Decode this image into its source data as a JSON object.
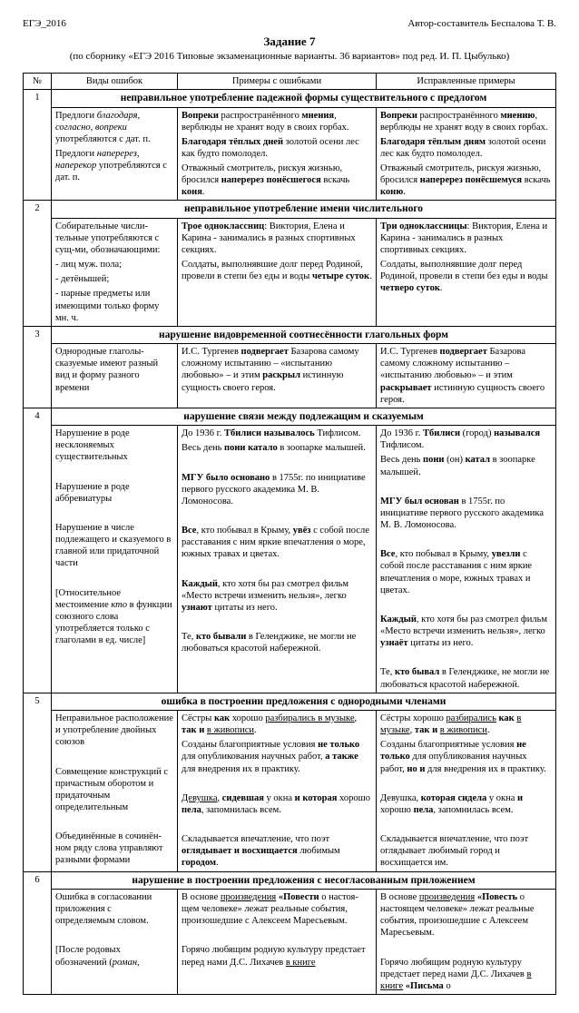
{
  "meta": {
    "left_header": "ЕГЭ_2016",
    "right_header": "Автор-составитель Беспалова Т. В.",
    "title": "Задание 7",
    "subtitle": "(по сборнику «ЕГЭ 2016 Типовые экзаменационные варианты. 36 вариантов» под ред. И. П. Цыбулько)"
  },
  "headers": {
    "num": "№",
    "col1": "Виды ошибок",
    "col2": "Примеры с ошибками",
    "col3": "Исправленные примеры"
  },
  "rows": [
    {
      "num": "1",
      "section": "неправильное употребление падежной формы существительного с предлогом",
      "col1": "<p>Предлоги <span class='i'>благодаря, согласно, вопреки</span> употребляются с дат. п.</p><p>Предлоги <span class='i'>наперерез, наперекор</span> употребляются с дат. п.</p>",
      "col2": "<p><span class='b'>Вопреки</span> распространённого <span class='b'>мнения</span>, верблюды не хранят воду в своих горбах.</p><p><span class='b'>Благодаря тёплых дней</span> золотой осени лес как будто помолодел.</p><p>Отважный смотритель, рискуя жизнью, бросился <span class='b'>наперерез понёсшегося</span> вскачь <span class='b'>коня</span>.</p>",
      "col3": "<p><span class='b'>Вопреки</span> распространённого <span class='b'>мнению</span>, верблюды не хранят воду в своих горбах.</p><p><span class='b'>Благодаря тёплым дням</span> золотой осени лес как будто помолодел.</p><p>Отважный смотритель, рискуя жизнью, бросился <span class='b'>наперерез понёсшемуся</span> вскачь <span class='b'>коню</span>.</p>"
    },
    {
      "num": "2",
      "section": "неправильное употребление имени числительного",
      "col1": "<p>Собирательные числи­тельные употребляются с сущ-ми, обозначающими:</p><p>- лиц муж. пола;</p><p>- детёнышей;</p><p>- парные предметы или имеющими только форму мн. ч.</p>",
      "col2": "<p><span class='b'>Трое одноклассниц</span>: Виктория, Елена и Карина - занимались в разных спортивных секциях.</p><p>Солдаты, выполнявшие долг перед Родиной, провели в степи без еды и воды <span class='b'>четыре суток</span>.</p>",
      "col3": "<p><span class='b'>Три одноклассницы</span>: Виктория, Елена и Карина - занимались в разных спортивных секциях.</p><p>Солдаты, выполнявшие долг перед Родиной, провели в степи без еды и воды <span class='b'>четверо суток</span>.</p>"
    },
    {
      "num": "3",
      "section": "нарушение видовременной соотнесённости глагольных форм",
      "col1": "<p>Однородные глаголы-сказуемые имеют разный вид и форму разного времени</p>",
      "col2": "<p>И.С. Тургенев <span class='b'>подвергает</span> Базарова самому сложному испытанию – «испытанию любовью» – и этим <span class='b'>раскрыл</span> истинную сущность своего героя.</p>",
      "col3": "<p>И.С. Тургенев <span class='b'>подвергает</span> Базарова самому сложному испытанию – «испытанию любовью» – и этим <span class='b'>раскрывает</span> истинную сущность своего героя.</p>"
    },
    {
      "num": "4",
      "section": "нарушение связи между подлежащим и сказуемым",
      "col1": "<p>Нарушение в роде несклоняемых существительных</p><p>&nbsp;</p><p>Нарушение в роде аббревиатуры</p><p>&nbsp;</p><p>Нарушение в числе подлежащего и сказуемого в главной или придаточной части</p><p>&nbsp;</p><p>[Относительное местоимение <span class='i'>кто</span> в функции союзного слова употребляется только с глаголами в ед. числе]</p>",
      "col2": "<p>До 1936 г. <span class='b'>Тбилиси называлось</span> Тифлисом.</p><p>Весь день <span class='b'>пони катало</span> в зоопарке малышей.</p><p>&nbsp;</p><p><span class='b'>МГУ было основано</span> в 1755г. по инициативе первого русского академика М. В. Ломоносова.</p><p>&nbsp;</p><p><span class='b'>Все</span>, кто побывал в Крыму, <span class='b'>увёз</span> с собой после расставания с ним яркие впечатления о море, южных травах и цветах.</p><p>&nbsp;</p><p><span class='b'>Каждый</span>, кто хотя бы раз смотрел фильм «Место встречи изменить нельзя», легко <span class='b'>узнают</span> цитаты из него.</p><p>&nbsp;</p><p>Те, <span class='b'>кто бывали</span> в Геленджике, не могли не любоваться красотой набережной.</p>",
      "col3": "<p>До 1936 г. <span class='b'>Тбилиси</span> (город) <span class='b'>назывался</span> Тифлисом.</p><p>Весь день <span class='b'>пони</span> (он) <span class='b'>катал</span> в зоопарке малышей.</p><p>&nbsp;</p><p><span class='b'>МГУ был основан</span> в 1755г. по инициативе первого русского академика М. В. Ломоносова.</p><p>&nbsp;</p><p><span class='b'>Все</span>, кто побывал в Крыму, <span class='b'>увезли</span> с собой после расставания с ним яркие впечатления о море, южных травах и цветах.</p><p>&nbsp;</p><p><span class='b'>Каждый</span>, кто хотя бы раз смотрел фильм «Место встречи изменить нельзя», легко <span class='b'>узнаёт</span> цитаты из него.</p><p>&nbsp;</p><p>Те, <span class='b'>кто бывал</span> в Геленджике, не могли не любоваться красотой набережной.</p>"
    },
    {
      "num": "5",
      "section": "ошибка в построении предложения с однородными членами",
      "col1": "<p>Неправильное расположение и употребление двойных союзов</p><p>&nbsp;</p><p>Совмещение конструк­ций с причастным оборотом и придаточным определительным</p><p>&nbsp;</p><p>Объединённые в сочинён­ном ряду слова управляют разными формами</p>",
      "col2": "<p>Сёстры <span class='b'>как</span> хорошо <span class='u'>разбирались в музыке</span>, <span class='b'>так и</span> <span class='u'>в живописи</span>.</p><p>Созданы благоприятные условия <span class='b'>не только</span> для опубликования научных работ, <span class='b'>а также</span> для внедрения их в практику.</p><p>&nbsp;</p><p><span class='u'>Девушка</span>, <span class='b'>сидевшая</span> у окна <span class='b'>и которая</span> хорошо <span class='b'>пела</span>, запомнилась всем.</p><p>&nbsp;</p><p>Складывается впечатление, что поэт <span class='b'>оглядывает и восхищается</span> любимым <span class='b'>городом</span>.</p>",
      "col3": "<p>Сёстры хорошо <span class='u'>разбирались</span> <span class='b'>как</span> <span class='u'>в музыке</span>, <span class='b'>так и</span> <span class='u'>в живописи</span>.</p><p>Созданы благоприятные условия <span class='b'>не только</span> для опубликования научных работ, <span class='b'>но и</span> для внедрения их в практику.</p><p>&nbsp;</p><p>Девушка, <span class='b'>которая сидела</span> у окна <span class='b'>и</span> хорошо <span class='b'>пела</span>, запомнилась всем.</p><p>&nbsp;</p><p>Складывается впечатление, что поэт оглядывает любимый город и восхищается им.</p>"
    },
    {
      "num": "6",
      "section": "нарушение в построении предложения с несогласованным приложением",
      "col1": "<p>Ошибка в согласовании приложения с определяемым словом.</p><p>&nbsp;</p><p>[После родовых обозначений (<span class='i'>роман</span>,</p>",
      "col2": "<p>В основе <span class='u'>произведения</span> <span class='b'>«Повести</span> о настоя­щем человеке» лежат реальные события, произошедшие с Алексеем Маресьевым.</p><p>&nbsp;</p><p>Горячо любящим родную культуру предстает перед нами Д.С. Лихачев <span class='u'>в книге</span></p>",
      "col3": "<p>В основе <span class='u'>произведения</span> <span class='b'>«Повесть</span> о настоящем человеке» лежат реальные события, произошедшие с Алексеем Маресьевым.</p><p>&nbsp;</p><p>Горячо любящим родную культуру предстает перед нами Д.С. Лихачев <span class='u'>в книге</span> <span class='b'>«Письма</span> о</p>"
    }
  ]
}
